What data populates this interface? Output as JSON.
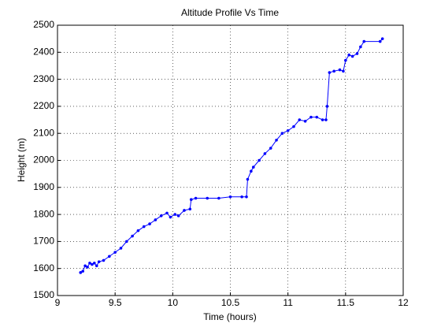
{
  "chart_data": {
    "type": "line",
    "title": "Altitude Profile Vs Time",
    "xlabel": "Time (hours)",
    "ylabel": "Height (m)",
    "x": [
      9.2,
      9.22,
      9.24,
      9.26,
      9.28,
      9.3,
      9.32,
      9.34,
      9.36,
      9.4,
      9.45,
      9.5,
      9.55,
      9.6,
      9.65,
      9.7,
      9.75,
      9.8,
      9.85,
      9.9,
      9.95,
      9.98,
      10.02,
      10.05,
      10.1,
      10.15,
      10.16,
      10.2,
      10.3,
      10.4,
      10.5,
      10.6,
      10.64,
      10.65,
      10.68,
      10.7,
      10.75,
      10.8,
      10.85,
      10.9,
      10.95,
      11.0,
      11.05,
      11.1,
      11.15,
      11.2,
      11.25,
      11.3,
      11.33,
      11.34,
      11.36,
      11.4,
      11.45,
      11.48,
      11.5,
      11.53,
      11.56,
      11.6,
      11.63,
      11.66,
      11.8,
      11.82
    ],
    "values": [
      1585,
      1590,
      1610,
      1605,
      1620,
      1615,
      1620,
      1610,
      1625,
      1630,
      1645,
      1660,
      1675,
      1700,
      1720,
      1740,
      1755,
      1765,
      1780,
      1795,
      1805,
      1790,
      1800,
      1795,
      1815,
      1820,
      1855,
      1860,
      1860,
      1860,
      1865,
      1865,
      1865,
      1930,
      1960,
      1975,
      2000,
      2025,
      2045,
      2075,
      2100,
      2110,
      2125,
      2150,
      2145,
      2160,
      2160,
      2150,
      2150,
      2200,
      2325,
      2330,
      2335,
      2330,
      2370,
      2390,
      2385,
      2395,
      2420,
      2440,
      2440,
      2450
    ],
    "color": "#0000ff",
    "xlim": [
      9,
      12
    ],
    "xticks": [
      9,
      9.5,
      10,
      10.5,
      11,
      11.5,
      12
    ],
    "ylim": [
      1500,
      2500
    ],
    "yticks": [
      1500,
      1600,
      1700,
      1800,
      1900,
      2000,
      2100,
      2200,
      2300,
      2400,
      2500
    ],
    "grid": true
  }
}
